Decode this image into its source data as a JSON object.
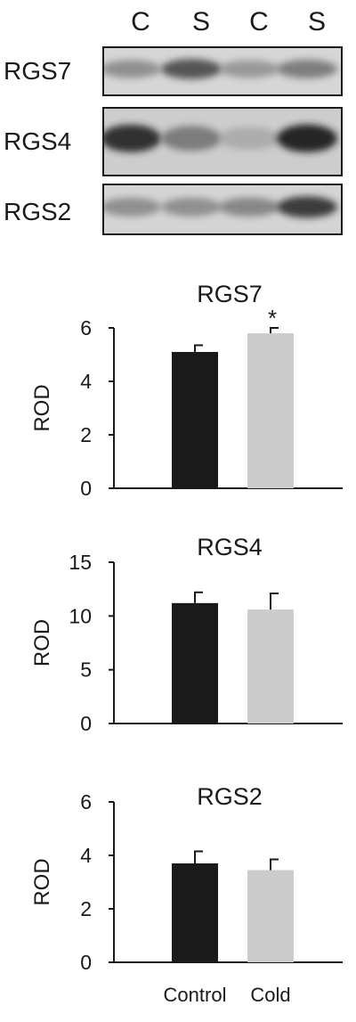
{
  "blot": {
    "lanes": [
      "C",
      "S",
      "C",
      "S"
    ],
    "rows": [
      {
        "label": "RGS7",
        "bands": [
          0.45,
          0.75,
          0.4,
          0.55
        ],
        "bg": "#d6d6d6"
      },
      {
        "label": "RGS4",
        "bands": [
          0.9,
          0.55,
          0.25,
          0.95
        ],
        "bg": "#cdcdcd"
      },
      {
        "label": "RGS2",
        "bands": [
          0.45,
          0.45,
          0.5,
          0.85
        ],
        "bg": "#d4d4d4"
      }
    ]
  },
  "colors": {
    "control": "#1a1a1a",
    "cold": "#cccccc"
  },
  "chart_data": [
    {
      "type": "bar",
      "title": "RGS7",
      "ylabel": "ROD",
      "ylim": [
        0,
        6
      ],
      "yticks": [
        0,
        2,
        4,
        6
      ],
      "categories": [
        "Control",
        "Cold"
      ],
      "values": [
        5.1,
        5.8
      ],
      "errors": [
        0.25,
        0.2
      ],
      "annotation": {
        "text": "*",
        "category": "Cold"
      }
    },
    {
      "type": "bar",
      "title": "RGS4",
      "ylabel": "ROD",
      "ylim": [
        0,
        15
      ],
      "yticks": [
        0,
        5,
        10,
        15
      ],
      "categories": [
        "Control",
        "Cold"
      ],
      "values": [
        11.2,
        10.6
      ],
      "errors": [
        1.0,
        1.5
      ]
    },
    {
      "type": "bar",
      "title": "RGS2",
      "ylabel": "ROD",
      "ylim": [
        0,
        6
      ],
      "yticks": [
        0,
        2,
        4,
        6
      ],
      "categories": [
        "Control",
        "Cold"
      ],
      "values": [
        3.7,
        3.45
      ],
      "errors": [
        0.45,
        0.4
      ]
    }
  ],
  "xaxis": {
    "labels": [
      "Control",
      "Cold"
    ]
  }
}
